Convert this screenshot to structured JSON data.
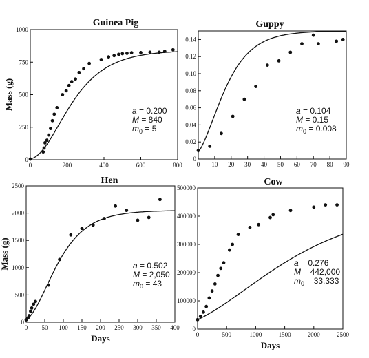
{
  "colors": {
    "ink": "#111111",
    "background": "#ffffff"
  },
  "chart_data": [
    {
      "type": "scatter",
      "title": "Guinea Pig",
      "xlabel": "",
      "ylabel": "Mass (g)",
      "xlim": [
        0,
        800
      ],
      "ylim": [
        0,
        1000
      ],
      "xticks": [
        "0",
        "200",
        "400",
        "600",
        "800"
      ],
      "yticks": [
        "0",
        "250",
        "500",
        "750",
        "1000"
      ],
      "grid": false,
      "params": [
        "a = 0.200",
        "M = 840",
        "m0 = 5"
      ],
      "fit": {
        "a": 0.2,
        "M": 840,
        "m0": 5,
        "time_scale": 29
      },
      "series": [
        {
          "points": [
            [
              0,
              5
            ],
            [
              70,
              60
            ],
            [
              75,
              90
            ],
            [
              80,
              130
            ],
            [
              90,
              150
            ],
            [
              100,
              190
            ],
            [
              110,
              240
            ],
            [
              120,
              300
            ],
            [
              130,
              350
            ],
            [
              145,
              400
            ],
            [
              175,
              500
            ],
            [
              195,
              530
            ],
            [
              210,
              570
            ],
            [
              225,
              600
            ],
            [
              245,
              620
            ],
            [
              265,
              670
            ],
            [
              290,
              700
            ],
            [
              320,
              740
            ],
            [
              385,
              770
            ],
            [
              425,
              790
            ],
            [
              455,
              800
            ],
            [
              480,
              810
            ],
            [
              500,
              815
            ],
            [
              525,
              818
            ],
            [
              550,
              822
            ],
            [
              600,
              823
            ],
            [
              650,
              826
            ],
            [
              700,
              826
            ],
            [
              730,
              833
            ],
            [
              775,
              845
            ]
          ]
        }
      ]
    },
    {
      "type": "scatter",
      "title": "Guppy",
      "xlabel": "",
      "ylabel": "",
      "xlim": [
        0,
        90
      ],
      "ylim": [
        0,
        0.15
      ],
      "xticks": [
        "0",
        "10",
        "20",
        "30",
        "40",
        "50",
        "60",
        "70",
        "80",
        "90"
      ],
      "yticks": [
        "0",
        "0.02",
        "0.04",
        "0.06",
        "0.08",
        "0.10",
        "0.12",
        "0.14"
      ],
      "grid": false,
      "params": [
        "a = 0.104",
        "M = 0.15",
        "m0 = 0.008"
      ],
      "fit": {
        "a": 0.104,
        "M": 0.15,
        "m0": 0.008,
        "time_scale": 1.3
      },
      "series": [
        {
          "points": [
            [
              0,
              0.01
            ],
            [
              7,
              0.015
            ],
            [
              14,
              0.03
            ],
            [
              21,
              0.05
            ],
            [
              28,
              0.07
            ],
            [
              35,
              0.085
            ],
            [
              42,
              0.11
            ],
            [
              49,
              0.115
            ],
            [
              56,
              0.125
            ],
            [
              63,
              0.135
            ],
            [
              70,
              0.145
            ],
            [
              73,
              0.135
            ],
            [
              84,
              0.138
            ],
            [
              88,
              0.14
            ]
          ]
        }
      ]
    },
    {
      "type": "scatter",
      "title": "Hen",
      "xlabel": "Days",
      "ylabel": "Mass (g)",
      "xlim": [
        0,
        400
      ],
      "ylim": [
        0,
        2500
      ],
      "xticks": [
        "0",
        "50",
        "100",
        "150",
        "200",
        "250",
        "300",
        "350",
        "400"
      ],
      "yticks": [
        "0",
        "500",
        "1000",
        "1500",
        "2000",
        "2500"
      ],
      "grid": false,
      "params": [
        "a = 0.502",
        "M = 2,050",
        "m0 = 43"
      ],
      "fit": {
        "a": 0.502,
        "M": 2050,
        "m0": 43,
        "time_scale": 30
      },
      "series": [
        {
          "points": [
            [
              0,
              43
            ],
            [
              5,
              80
            ],
            [
              8,
              120
            ],
            [
              12,
              200
            ],
            [
              15,
              260
            ],
            [
              20,
              330
            ],
            [
              25,
              380
            ],
            [
              60,
              680
            ],
            [
              90,
              1150
            ],
            [
              120,
              1600
            ],
            [
              150,
              1720
            ],
            [
              180,
              1780
            ],
            [
              210,
              1900
            ],
            [
              240,
              2130
            ],
            [
              270,
              2050
            ],
            [
              300,
              1870
            ],
            [
              330,
              1920
            ],
            [
              360,
              2250
            ]
          ]
        }
      ]
    },
    {
      "type": "scatter",
      "title": "Cow",
      "xlabel": "Days",
      "ylabel": "",
      "xlim": [
        0,
        2500
      ],
      "ylim": [
        0,
        500000
      ],
      "xticks": [
        "0",
        "500",
        "1000",
        "1500",
        "2000",
        "2500"
      ],
      "yticks": [
        "0",
        "100000",
        "200000",
        "300000",
        "400000",
        "500000"
      ],
      "grid": false,
      "params": [
        "a = 0.276",
        "M = 442,000",
        "m0 = 33,333"
      ],
      "fit": {
        "a": 0.276,
        "M": 442000,
        "m0": 33333,
        "time_scale": 350
      },
      "series": [
        {
          "points": [
            [
              0,
              33333
            ],
            [
              50,
              45000
            ],
            [
              100,
              60000
            ],
            [
              150,
              80000
            ],
            [
              200,
              110000
            ],
            [
              250,
              135000
            ],
            [
              300,
              160000
            ],
            [
              350,
              190000
            ],
            [
              400,
              215000
            ],
            [
              450,
              235000
            ],
            [
              550,
              280000
            ],
            [
              600,
              300000
            ],
            [
              700,
              335000
            ],
            [
              900,
              360000
            ],
            [
              1050,
              370000
            ],
            [
              1250,
              395000
            ],
            [
              1300,
              405000
            ],
            [
              1600,
              420000
            ],
            [
              2000,
              432000
            ],
            [
              2200,
              440000
            ],
            [
              2400,
              440000
            ]
          ]
        }
      ]
    }
  ]
}
